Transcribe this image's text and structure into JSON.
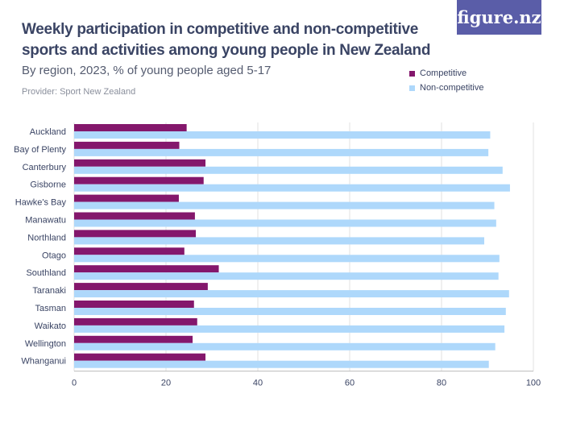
{
  "logo": "figure.nz",
  "colors": {
    "competitive": "#84176c",
    "noncompetitive": "#aed8fb"
  },
  "chart_data": {
    "type": "bar",
    "orientation": "horizontal",
    "title": "Weekly participation in competitive and non-competitive sports and activities among young people in New Zealand",
    "subtitle": "By region, 2023, % of young people aged 5-17",
    "provider": "Provider: Sport New Zealand",
    "categories": [
      "Auckland",
      "Bay of Plenty",
      "Canterbury",
      "Gisborne",
      "Hawke's Bay",
      "Manawatu",
      "Northland",
      "Otago",
      "Southland",
      "Taranaki",
      "Tasman",
      "Waikato",
      "Wellington",
      "Whanganui"
    ],
    "series": [
      {
        "name": "Competitive",
        "values": [
          24.5,
          22.9,
          28.6,
          28.2,
          22.8,
          26.3,
          26.5,
          24.0,
          31.5,
          29.1,
          26.1,
          26.8,
          25.8,
          28.6
        ]
      },
      {
        "name": "Non-competitive",
        "values": [
          90.6,
          90.2,
          93.3,
          94.9,
          91.5,
          91.9,
          89.3,
          92.6,
          92.4,
          94.7,
          94.0,
          93.7,
          91.7,
          90.3
        ]
      }
    ],
    "xlim": [
      0,
      100
    ],
    "xticks": [
      "0",
      "20",
      "40",
      "60",
      "80",
      "100"
    ],
    "grid": true,
    "legend": "top-right"
  }
}
